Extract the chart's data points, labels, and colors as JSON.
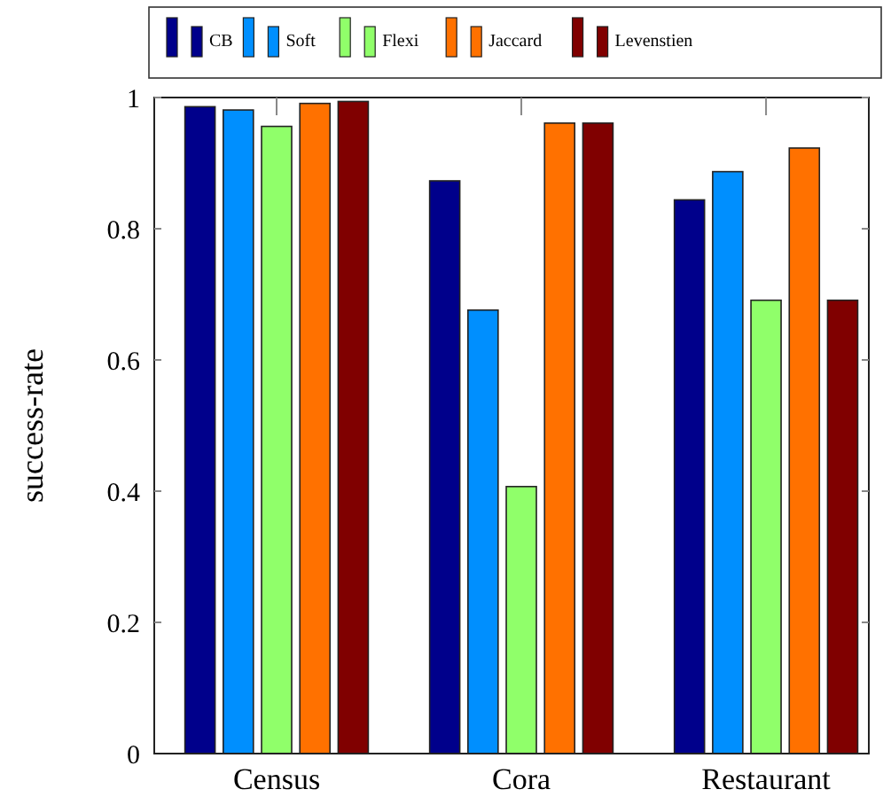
{
  "chart_data": {
    "type": "bar",
    "ylabel": "success-rate",
    "categories": [
      "Census",
      "Cora",
      "Restaurant"
    ],
    "series": [
      {
        "name": "CB",
        "color": "#00008b",
        "values": [
          0.986,
          0.873,
          0.844
        ]
      },
      {
        "name": "Soft",
        "color": "#008ffe",
        "values": [
          0.981,
          0.676,
          0.887
        ]
      },
      {
        "name": "Flexi",
        "color": "#90ff6a",
        "values": [
          0.956,
          0.407,
          0.691
        ]
      },
      {
        "name": "Jaccard",
        "color": "#ff7100",
        "values": [
          0.991,
          0.961,
          0.923
        ]
      },
      {
        "name": "Levenstien",
        "color": "#800000",
        "values": [
          0.994,
          0.961,
          0.691
        ]
      }
    ],
    "ylim": [
      0,
      1
    ],
    "yticks": [
      0,
      0.2,
      0.4,
      0.6,
      0.8,
      1
    ],
    "legend": "top",
    "grid": false
  }
}
